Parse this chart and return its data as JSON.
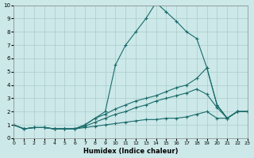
{
  "xlabel": "Humidex (Indice chaleur)",
  "xlim": [
    0,
    23
  ],
  "ylim": [
    0,
    10
  ],
  "xticks": [
    0,
    1,
    2,
    3,
    4,
    5,
    6,
    7,
    8,
    9,
    10,
    11,
    12,
    13,
    14,
    15,
    16,
    17,
    18,
    19,
    20,
    21,
    22,
    23
  ],
  "yticks": [
    0,
    1,
    2,
    3,
    4,
    5,
    6,
    7,
    8,
    9,
    10
  ],
  "bg_color": "#cce8e8",
  "grid_color": "#aacccc",
  "line_color": "#1a6b6b",
  "curves": [
    {
      "x": [
        0,
        1,
        2,
        3,
        4,
        5,
        6,
        7,
        8,
        9,
        10,
        11,
        12,
        13,
        14,
        15,
        16,
        17,
        18,
        19,
        20,
        21,
        22,
        23
      ],
      "y": [
        1.0,
        0.7,
        0.8,
        0.8,
        0.7,
        0.7,
        0.7,
        1.0,
        1.5,
        2.0,
        5.5,
        7.0,
        8.0,
        9.0,
        10.2,
        9.5,
        8.8,
        8.0,
        7.5,
        5.3,
        2.5,
        1.5,
        2.0,
        2.0
      ]
    },
    {
      "x": [
        0,
        1,
        2,
        3,
        4,
        5,
        6,
        7,
        8,
        9,
        10,
        11,
        12,
        13,
        14,
        15,
        16,
        17,
        18,
        19,
        20,
        21,
        22,
        23
      ],
      "y": [
        1.0,
        0.7,
        0.8,
        0.8,
        0.7,
        0.7,
        0.7,
        1.0,
        1.5,
        1.8,
        2.2,
        2.5,
        2.8,
        3.0,
        3.2,
        3.5,
        3.8,
        4.0,
        4.5,
        5.3,
        2.5,
        1.5,
        2.0,
        2.0
      ]
    },
    {
      "x": [
        0,
        1,
        2,
        3,
        4,
        5,
        6,
        7,
        8,
        9,
        10,
        11,
        12,
        13,
        14,
        15,
        16,
        17,
        18,
        19,
        20,
        21,
        22,
        23
      ],
      "y": [
        1.0,
        0.7,
        0.8,
        0.8,
        0.7,
        0.7,
        0.7,
        0.9,
        1.2,
        1.5,
        1.8,
        2.0,
        2.3,
        2.5,
        2.8,
        3.0,
        3.2,
        3.4,
        3.7,
        3.3,
        2.3,
        1.5,
        2.0,
        2.0
      ]
    },
    {
      "x": [
        0,
        1,
        2,
        3,
        4,
        5,
        6,
        7,
        8,
        9,
        10,
        11,
        12,
        13,
        14,
        15,
        16,
        17,
        18,
        19,
        20,
        21,
        22,
        23
      ],
      "y": [
        1.0,
        0.7,
        0.8,
        0.8,
        0.7,
        0.7,
        0.7,
        0.8,
        0.9,
        1.0,
        1.1,
        1.2,
        1.3,
        1.4,
        1.4,
        1.5,
        1.5,
        1.6,
        1.8,
        2.0,
        1.5,
        1.5,
        2.0,
        2.0
      ]
    }
  ]
}
